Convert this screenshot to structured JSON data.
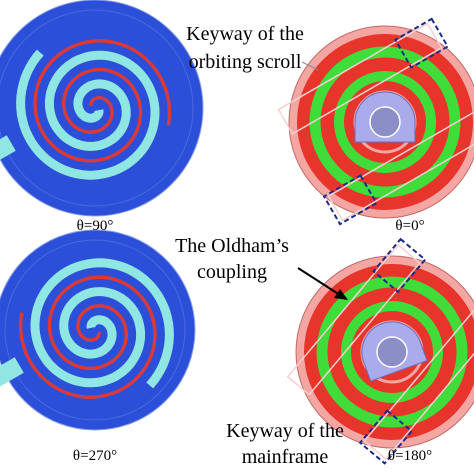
{
  "panels": [
    {
      "angle_label": "θ=90°"
    },
    {
      "angle_label": "θ=0°"
    },
    {
      "angle_label": "θ=270°"
    },
    {
      "angle_label": "θ=180°"
    }
  ],
  "callouts": [
    {
      "lines": [
        "Keyway of  the",
        "orbiting scroll"
      ]
    },
    {
      "lines": [
        "The Oldham’s",
        "coupling"
      ]
    },
    {
      "lines": [
        "Keyway of the",
        "mainframe"
      ]
    }
  ]
}
